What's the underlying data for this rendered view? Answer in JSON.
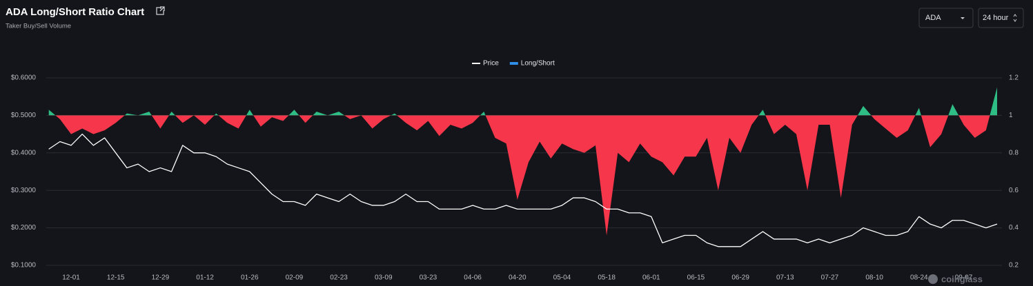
{
  "chart_data": {
    "type": "line",
    "title": "ADA Long/Short Ratio Chart",
    "subtitle": "Taker Buy/Sell Volume",
    "controls": [
      "ADA",
      "24 hour"
    ],
    "watermark": "coinglass",
    "categories": [
      null,
      null,
      "12-01",
      null,
      null,
      null,
      "12-15",
      null,
      null,
      null,
      "12-29",
      null,
      null,
      null,
      "01-12",
      null,
      null,
      null,
      "01-26",
      null,
      null,
      null,
      "02-09",
      null,
      null,
      null,
      "02-23",
      null,
      null,
      null,
      "03-09",
      null,
      null,
      null,
      "03-23",
      null,
      null,
      null,
      "04-06",
      null,
      null,
      null,
      "04-20",
      null,
      null,
      null,
      "05-04",
      null,
      null,
      null,
      "05-18",
      null,
      null,
      null,
      "06-01",
      null,
      null,
      null,
      "06-15",
      null,
      null,
      null,
      "06-29",
      null,
      null,
      null,
      "07-13",
      null,
      null,
      null,
      "07-27",
      null,
      null,
      null,
      "08-10",
      null,
      null,
      null,
      "08-24",
      null,
      null,
      null,
      "09-07",
      null,
      null,
      null
    ],
    "series": [
      {
        "name": "Price",
        "color": "#ffffff",
        "values": [
          0.41,
          0.43,
          0.42,
          0.45,
          0.42,
          0.44,
          0.4,
          0.36,
          0.37,
          0.35,
          0.36,
          0.35,
          0.42,
          0.4,
          0.4,
          0.39,
          0.37,
          0.36,
          0.35,
          0.32,
          0.29,
          0.27,
          0.27,
          0.26,
          0.29,
          0.28,
          0.27,
          0.29,
          0.27,
          0.26,
          0.26,
          0.27,
          0.29,
          0.27,
          0.27,
          0.25,
          0.25,
          0.25,
          0.26,
          0.25,
          0.25,
          0.26,
          0.25,
          0.25,
          0.25,
          0.25,
          0.26,
          0.28,
          0.28,
          0.27,
          0.25,
          0.25,
          0.24,
          0.24,
          0.23,
          0.16,
          0.17,
          0.18,
          0.18,
          0.16,
          0.15,
          0.15,
          0.15,
          0.17,
          0.19,
          0.17,
          0.17,
          0.17,
          0.16,
          0.17,
          0.16,
          0.17,
          0.18,
          0.2,
          0.19,
          0.18,
          0.18,
          0.19,
          0.23,
          0.21,
          0.2,
          0.22,
          0.22,
          0.21,
          0.2,
          0.21
        ]
      },
      {
        "name": "Long/Short",
        "color": "#2f8fe8",
        "axis": "y2",
        "up_color": "#2ebd85",
        "down_color": "#f6364a",
        "values": [
          1.03,
          0.98,
          0.9,
          0.93,
          0.9,
          0.92,
          0.96,
          1.01,
          1.0,
          1.02,
          0.93,
          1.02,
          0.96,
          1.0,
          0.95,
          1.01,
          0.96,
          0.93,
          1.03,
          0.94,
          0.99,
          0.97,
          1.03,
          0.96,
          1.02,
          1.0,
          1.02,
          0.98,
          1.0,
          0.93,
          0.98,
          1.01,
          0.96,
          0.92,
          0.97,
          0.89,
          0.95,
          0.93,
          0.96,
          1.02,
          0.88,
          0.85,
          0.55,
          0.75,
          0.86,
          0.77,
          0.85,
          0.82,
          0.8,
          0.84,
          0.36,
          0.8,
          0.75,
          0.85,
          0.78,
          0.75,
          0.68,
          0.78,
          0.78,
          0.88,
          0.6,
          0.88,
          0.8,
          0.95,
          1.03,
          0.9,
          0.95,
          0.9,
          0.6,
          0.95,
          0.95,
          0.56,
          0.95,
          1.05,
          0.98,
          0.93,
          0.88,
          0.92,
          1.04,
          0.83,
          0.9,
          1.06,
          0.95,
          0.88,
          0.92,
          1.15
        ]
      }
    ],
    "baseline": 1,
    "ylim": [
      0.1,
      0.6
    ],
    "yticks": [
      {
        "value": 0.1,
        "label": "$0.1000"
      },
      {
        "value": 0.2,
        "label": "$0.2000"
      },
      {
        "value": 0.3,
        "label": "$0.3000"
      },
      {
        "value": 0.4,
        "label": "$0.4000"
      },
      {
        "value": 0.5,
        "label": "$0.5000"
      },
      {
        "value": 0.6,
        "label": "$0.6000"
      }
    ],
    "y2lim": [
      0.2,
      1.2
    ],
    "y2ticks": [
      0.2,
      0.4,
      0.6,
      0.8,
      1,
      1.2
    ],
    "grid": true,
    "legend": "top"
  }
}
